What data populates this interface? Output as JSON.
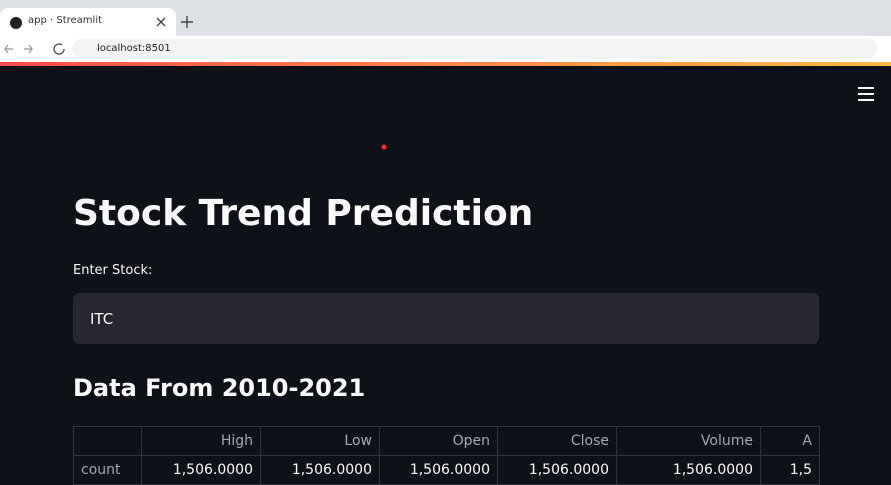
{
  "browser": {
    "tab_title": "app · Streamlit",
    "url": "localhost:8501"
  },
  "app": {
    "title": "Stock Trend Prediction",
    "input_label": "Enter Stock:",
    "input_value": "ITC",
    "subheader": "Data From 2010-2021"
  },
  "table": {
    "columns": [
      "High",
      "Low",
      "Open",
      "Close",
      "Volume",
      "A"
    ],
    "rows": [
      [
        "count",
        "1,506.0000",
        "1,506.0000",
        "1,506.0000",
        "1,506.0000",
        "1,506.0000",
        "1,5"
      ]
    ]
  }
}
